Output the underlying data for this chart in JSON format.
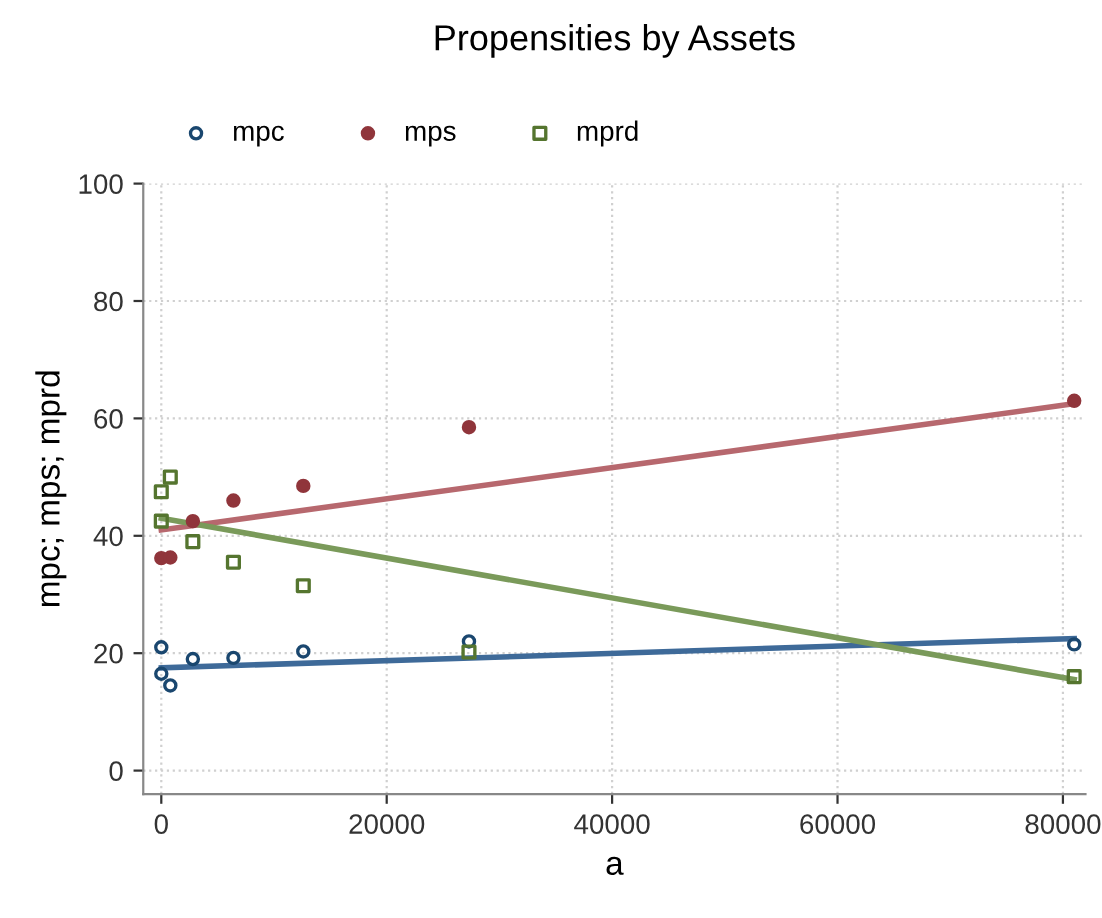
{
  "chart_data": {
    "type": "scatter",
    "title": "Propensities by Assets",
    "xlabel": "a",
    "ylabel": "mpc; mps; mprd",
    "xlim": [
      -1600,
      82000
    ],
    "ylim": [
      -4,
      100
    ],
    "xticks": [
      0,
      20000,
      40000,
      60000,
      80000
    ],
    "yticks": [
      0,
      20,
      40,
      60,
      80,
      100
    ],
    "grid": true,
    "legend": "top left",
    "series": [
      {
        "name": "mpc",
        "color": "#1a476f",
        "marker": "circle",
        "x": [
          0,
          0,
          800,
          2800,
          6400,
          12600,
          27300,
          81000
        ],
        "values": [
          21,
          16.5,
          14.5,
          19,
          19.2,
          20.3,
          22,
          21.5
        ]
      },
      {
        "name": "mps",
        "color": "#90353b",
        "marker": "circle",
        "x": [
          0,
          800,
          2800,
          6400,
          12600,
          27300,
          81000
        ],
        "values": [
          36.2,
          36.3,
          42.5,
          46,
          48.5,
          58.5,
          63
        ]
      },
      {
        "name": "mprd",
        "color": "#55752f",
        "marker": "square",
        "x": [
          0,
          0,
          800,
          2800,
          6400,
          12600,
          27300,
          81000
        ],
        "values": [
          47.5,
          42.5,
          50,
          39,
          35.5,
          31.5,
          20.2,
          16
        ]
      },
      {
        "type": "line",
        "color": "#3e6a99",
        "x": [
          0,
          81000
        ],
        "values": [
          17.5,
          22.5
        ]
      },
      {
        "type": "line",
        "color": "#b7686e",
        "x": [
          0,
          81000
        ],
        "values": [
          41,
          62.5
        ]
      },
      {
        "type": "line",
        "color": "#7a9a5a",
        "x": [
          0,
          81000
        ],
        "values": [
          43,
          15.5
        ]
      }
    ]
  }
}
